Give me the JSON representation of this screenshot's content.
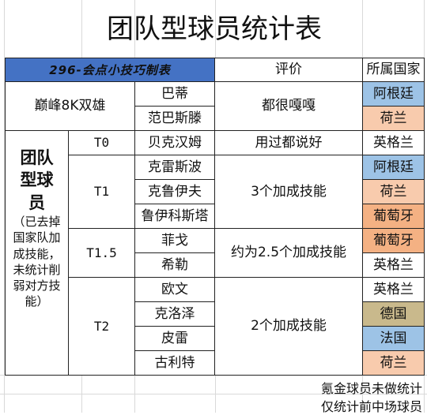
{
  "title": "团队型球员统计表",
  "header": {
    "banner": "296-会点小技巧制表",
    "rating": "评价",
    "country": "所属国家"
  },
  "peak": {
    "label": "巅峰8K双雄",
    "players": [
      "巴蒂",
      "范巴斯滕"
    ],
    "rating": "都很嘎嘎",
    "countries": [
      "阿根廷",
      "荷兰"
    ]
  },
  "team": {
    "big": "团队型球员",
    "small": "（已去掉国家队加成技能，未统计削弱对方技能）"
  },
  "tiers": [
    {
      "tier": "T0",
      "rating": "用过都说好",
      "players": [
        "贝克汉姆"
      ],
      "countries": [
        "英格兰"
      ],
      "colors": [
        "#ffffff"
      ]
    },
    {
      "tier": "T1",
      "rating": "3个加成技能",
      "players": [
        "克雷斯波",
        "克鲁伊夫",
        "鲁伊科斯塔"
      ],
      "countries": [
        "阿根廷",
        "荷兰",
        "葡萄牙"
      ],
      "colors": [
        "#9dc3e6",
        "#f8cbad",
        "#f4b183"
      ]
    },
    {
      "tier": "T1.5",
      "rating": "约为2.5个加成技能",
      "players": [
        "菲戈",
        "希勒"
      ],
      "countries": [
        "葡萄牙",
        "英格兰"
      ],
      "colors": [
        "#f4b183",
        "#ffffff"
      ]
    },
    {
      "tier": "T2",
      "rating": "2个加成技能",
      "players": [
        "欧文",
        "克洛泽",
        "皮雷",
        "古利特"
      ],
      "countries": [
        "英格兰",
        "德国",
        "法国",
        "荷兰"
      ],
      "colors": [
        "#ffffff",
        "#c9b98c",
        "#9dc3e6",
        "#f8cbad"
      ]
    }
  ],
  "footnotes": [
    "氪金球员未做统计",
    "仅统计前中场球员"
  ]
}
